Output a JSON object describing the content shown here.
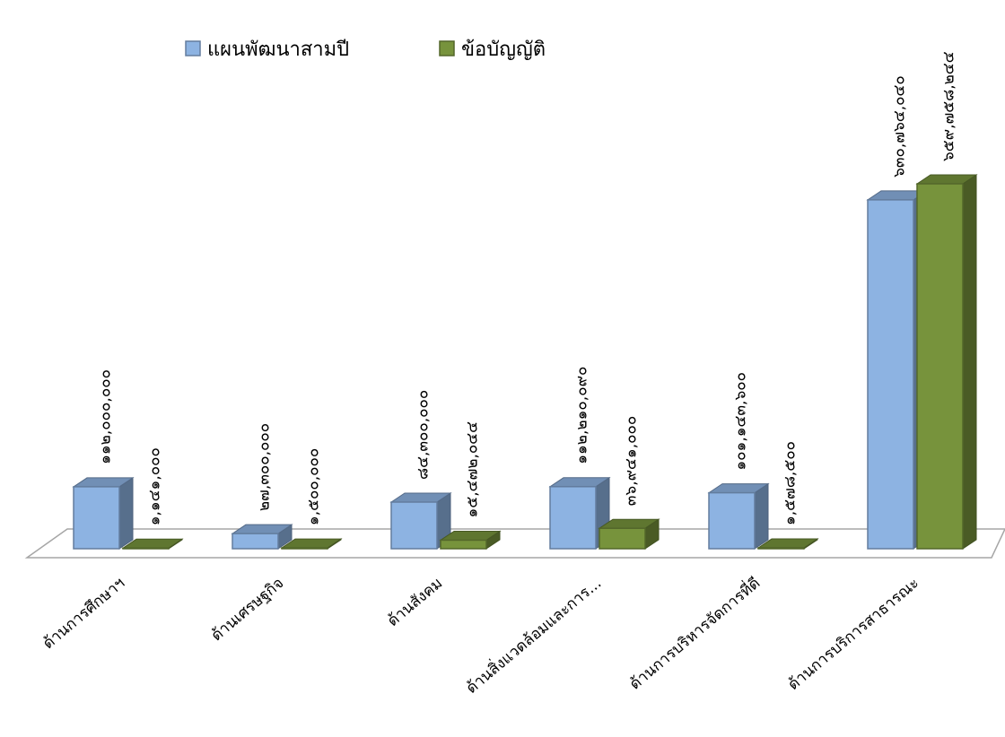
{
  "chart_data": {
    "type": "bar3d",
    "categories": [
      "ด้านการศึกษาฯ",
      "ด้านเศรษฐกิจ",
      "ด้านสังคม",
      "ด้านสิ่งแวดล้อมและการ...",
      "ด้านการบริหารจัดการที่ดี",
      "ด้านการบริการสาธารณะ"
    ],
    "series": [
      {
        "name": "แผนพัฒนาสามปี",
        "color": "#8db3e2",
        "values": [
          112000000,
          27300000,
          84300000,
          112210090,
          101143600,
          630764040
        ],
        "value_labels": [
          "๑๑๒,๐๐๐,๐๐๐",
          "๒๗,๓๐๐,๐๐๐",
          "๘๔,๓๐๐,๐๐๐",
          "๑๑๒,๒๑๐,๐๙๐",
          "๑๐๑,๑๔๓,๖๐๐",
          "๖๓๐,๗๖๔,๐๔๐"
        ]
      },
      {
        "name": "ข้อบัญญัติ",
        "color": "#77933c",
        "values": [
          1141000,
          1500000,
          15472044,
          36941000,
          1578500,
          659758244
        ],
        "value_labels": [
          "๑,๑๔๑,๐๐๐",
          "๑,๕๐๐,๐๐๐",
          "๑๕,๔๗๒,๐๔๔",
          "๓๖,๙๔๑,๐๐๐",
          "๑,๕๗๘,๕๐๐",
          "๖๕๙,๗๕๘,๒๔๔"
        ]
      }
    ],
    "legend": "top"
  }
}
